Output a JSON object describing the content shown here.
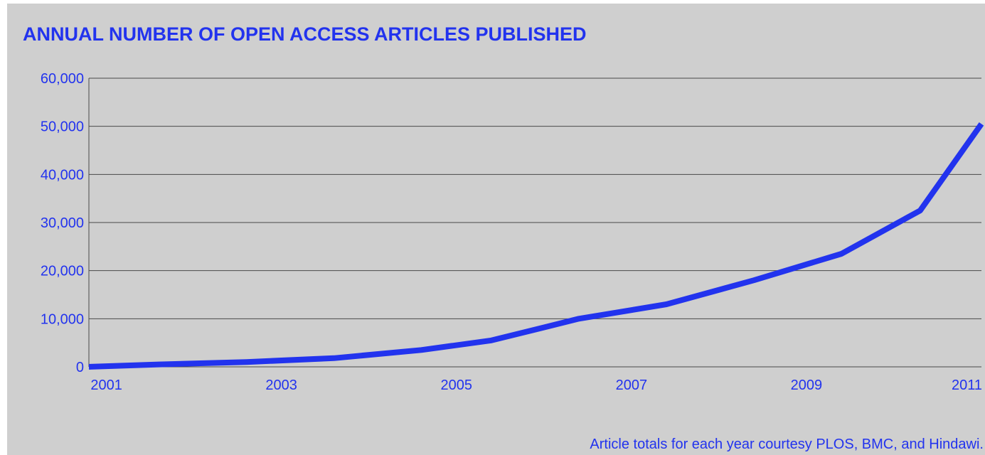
{
  "chart_data": {
    "type": "line",
    "title": "ANNUAL NUMBER OF OPEN ACCESS ARTICLES PUBLISHED",
    "xlabel": "",
    "ylabel": "",
    "x": [
      2000.8,
      2001.6,
      2002.6,
      2003.6,
      2004.6,
      2005.4,
      2006.4,
      2007.4,
      2008.4,
      2009.4,
      2010.3,
      2011.0
    ],
    "series": [
      {
        "values": [
          0,
          500,
          1000,
          1800,
          3500,
          5500,
          10000,
          13000,
          18000,
          23500,
          32500,
          50500
        ]
      }
    ],
    "x_ticks": [
      {
        "value": 2001,
        "label": "2001"
      },
      {
        "value": 2003,
        "label": "2003"
      },
      {
        "value": 2005,
        "label": "2005"
      },
      {
        "value": 2007,
        "label": "2007"
      },
      {
        "value": 2009,
        "label": "2009"
      },
      {
        "value": 2011,
        "label": "2011"
      }
    ],
    "y_ticks": [
      {
        "value": 0,
        "label": "0"
      },
      {
        "value": 10000,
        "label": "10,000"
      },
      {
        "value": 20000,
        "label": "20,000"
      },
      {
        "value": 30000,
        "label": "30,000"
      },
      {
        "value": 40000,
        "label": "40,000"
      },
      {
        "value": 50000,
        "label": "50,000"
      },
      {
        "value": 60000,
        "label": "60,000"
      }
    ],
    "xlim": [
      2000.8,
      2011.0
    ],
    "ylim": [
      0,
      60000
    ],
    "grid": "horizontal",
    "legend": "none",
    "annotation": "Article totals for each year courtesy PLOS, BMC, and Hindawi.",
    "colors": {
      "line": "#2233ee",
      "text": "#2233ee",
      "grid": "#4a4a4a",
      "background": "#cfcfcf"
    }
  }
}
